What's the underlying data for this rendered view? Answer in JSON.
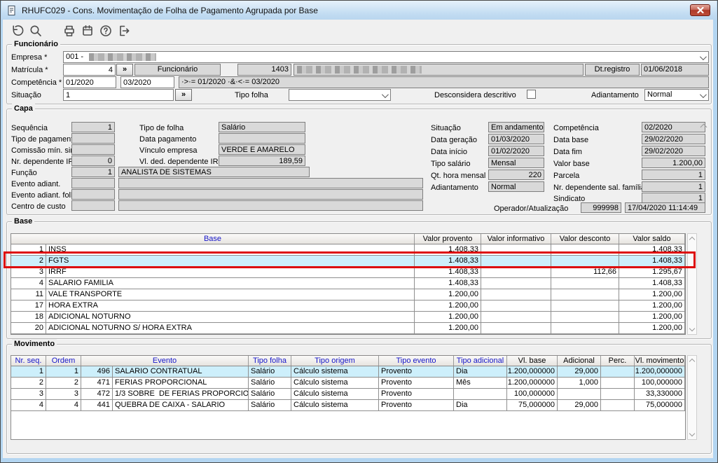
{
  "window": {
    "title": "RHUFC029 - Cons. Movimentação de Folha de Pagamento Agrupada por Base",
    "close_label": "X"
  },
  "toolbar": {
    "icons": [
      "undo-icon",
      "search-icon",
      "print-icon",
      "calendar-icon",
      "help-icon",
      "exit-icon"
    ]
  },
  "funcionario": {
    "group_label": "Funcionário",
    "empresa_label": "Empresa *",
    "empresa_value_visible": "001 - ",
    "matricula_label": "Matrícula *",
    "matricula_value": "4",
    "matricula_lookup": "»",
    "funcionario_label": "Funcionário",
    "funcionario_code": "1403",
    "dt_registro_label": "Dt.registro",
    "dt_registro_value": "01/06/2018",
    "competencia_label": "Competência *",
    "competencia_from": "01/2020",
    "competencia_to": "03/2020",
    "competencia_expr": "·>·= 01/2020 ·&·<·= 03/2020",
    "situacao_label": "Situação",
    "situacao_value": "1",
    "situacao_lookup": "»",
    "tipo_folha_label": "Tipo folha",
    "tipo_folha_value": "",
    "desconsidera_label": "Desconsidera descritivo",
    "adiantamento_label": "Adiantamento",
    "adiantamento_value": "Normal"
  },
  "capa": {
    "group_label": "Capa",
    "sequencia": {
      "label": "Sequência",
      "value": "1"
    },
    "tipo_pagamento": {
      "label": "Tipo de pagamento",
      "value": ""
    },
    "comissao": {
      "label": "Comissão mín. sind.",
      "value": ""
    },
    "nr_dep_irrf": {
      "label": "Nr. dependente IRRF",
      "value": "0"
    },
    "tipo_de_folha": {
      "label": "Tipo de folha",
      "value": "Salário"
    },
    "data_pagamento": {
      "label": "Data pagamento",
      "value": ""
    },
    "vinculo_empresa": {
      "label": "Vínculo empresa",
      "value": "VERDE E AMARELO"
    },
    "vl_ded_irrf": {
      "label": "Vl. ded. dependente IRRF",
      "value": "189,59"
    },
    "funcao": {
      "label": "Função",
      "value": "1",
      "desc": "ANALISTA DE SISTEMAS"
    },
    "evento_adiant": {
      "label": "Evento adiant.",
      "value": "",
      "desc": ""
    },
    "evento_adiant_folha": {
      "label": "Evento adiant. folha",
      "value": "",
      "desc": ""
    },
    "centro_custo": {
      "label": "Centro de custo",
      "value": "",
      "desc": ""
    },
    "situacao": {
      "label": "Situação",
      "value": "Em andamento"
    },
    "competencia": {
      "label": "Competência",
      "value": "02/2020"
    },
    "data_geracao": {
      "label": "Data geração",
      "value": "01/03/2020"
    },
    "data_base": {
      "label": "Data base",
      "value": "29/02/2020"
    },
    "data_inicio": {
      "label": "Data início",
      "value": "01/02/2020"
    },
    "data_fim": {
      "label": "Data fim",
      "value": "29/02/2020"
    },
    "tipo_salario": {
      "label": "Tipo salário",
      "value": "Mensal"
    },
    "valor_base": {
      "label": "Valor base",
      "value": "1.200,00"
    },
    "qt_hora": {
      "label": "Qt. hora mensal",
      "value": "220"
    },
    "parcela": {
      "label": "Parcela",
      "value": "1"
    },
    "adiantamento": {
      "label": "Adiantamento",
      "value": "Normal"
    },
    "nr_dep_sal": {
      "label": "Nr. dependente sal. família",
      "value": "1"
    },
    "sindicato": {
      "label": "Sindicato",
      "value": "1"
    },
    "operador": {
      "label": "Operador/Atualização",
      "value": "999998",
      "datetime": "17/04/2020 11:14:49"
    }
  },
  "base": {
    "group_label": "Base",
    "headers": [
      "Base",
      "Valor provento",
      "Valor informativo",
      "Valor desconto",
      "Valor saldo"
    ],
    "selected_index": 1,
    "annotation_color": "#dd0c0c",
    "rows": [
      {
        "num": "1",
        "name": "INSS",
        "provento": "1.408,33",
        "informativo": "",
        "desconto": "",
        "saldo": "1.408,33"
      },
      {
        "num": "2",
        "name": "FGTS",
        "provento": "1.408,33",
        "informativo": "",
        "desconto": "",
        "saldo": "1.408,33"
      },
      {
        "num": "3",
        "name": "IRRF",
        "provento": "1.408,33",
        "informativo": "",
        "desconto": "112,66",
        "saldo": "1.295,67"
      },
      {
        "num": "4",
        "name": "SALARIO FAMILIA",
        "provento": "1.408,33",
        "informativo": "",
        "desconto": "",
        "saldo": "1.408,33"
      },
      {
        "num": "11",
        "name": "VALE TRANSPORTE",
        "provento": "1.200,00",
        "informativo": "",
        "desconto": "",
        "saldo": "1.200,00"
      },
      {
        "num": "17",
        "name": "HORA EXTRA",
        "provento": "1.200,00",
        "informativo": "",
        "desconto": "",
        "saldo": "1.200,00"
      },
      {
        "num": "18",
        "name": "ADICIONAL NOTURNO",
        "provento": "1.200,00",
        "informativo": "",
        "desconto": "",
        "saldo": "1.200,00"
      },
      {
        "num": "20",
        "name": "ADICIONAL NOTURNO S/ HORA EXTRA",
        "provento": "1.200,00",
        "informativo": "",
        "desconto": "",
        "saldo": "1.200,00"
      }
    ]
  },
  "movimento": {
    "group_label": "Movimento",
    "headers": [
      "Nr. seq.",
      "Ordem",
      "Evento",
      "Tipo folha",
      "Tipo origem",
      "Tipo evento",
      "Tipo adicional",
      "Vl. base",
      "Adicional",
      "Perc.",
      "Vl. movimento"
    ],
    "selected_index": 0,
    "rows": [
      {
        "nr": "1",
        "ordem": "1",
        "ev_num": "496",
        "ev_name": "SALARIO CONTRATUAL",
        "tipo_folha": "Salário",
        "tipo_origem": "Cálculo sistema",
        "tipo_evento": "Provento",
        "tipo_adicional": "Dia",
        "vl_base": "1.200,000000",
        "adicional": "29,000",
        "perc": "",
        "vl_movimento": "1.200,000000"
      },
      {
        "nr": "2",
        "ordem": "2",
        "ev_num": "471",
        "ev_name": "FERIAS PROPORCIONAL",
        "tipo_folha": "Salário",
        "tipo_origem": "Cálculo sistema",
        "tipo_evento": "Provento",
        "tipo_adicional": "Mês",
        "vl_base": "1.200,000000",
        "adicional": "1,000",
        "perc": "",
        "vl_movimento": "100,000000"
      },
      {
        "nr": "3",
        "ordem": "3",
        "ev_num": "472",
        "ev_name": "1/3 SOBRE  DE FERIAS PROPORCIONAL",
        "tipo_folha": "Salário",
        "tipo_origem": "Cálculo sistema",
        "tipo_evento": "Provento",
        "tipo_adicional": "",
        "vl_base": "100,000000",
        "adicional": "",
        "perc": "",
        "vl_movimento": "33,330000"
      },
      {
        "nr": "4",
        "ordem": "4",
        "ev_num": "441",
        "ev_name": "QUEBRA DE CAIXA - SALARIO",
        "tipo_folha": "Salário",
        "tipo_origem": "Cálculo sistema",
        "tipo_evento": "Provento",
        "tipo_adicional": "Dia",
        "vl_base": "75,000000",
        "adicional": "29,000",
        "perc": "",
        "vl_movimento": "75,000000"
      }
    ]
  }
}
